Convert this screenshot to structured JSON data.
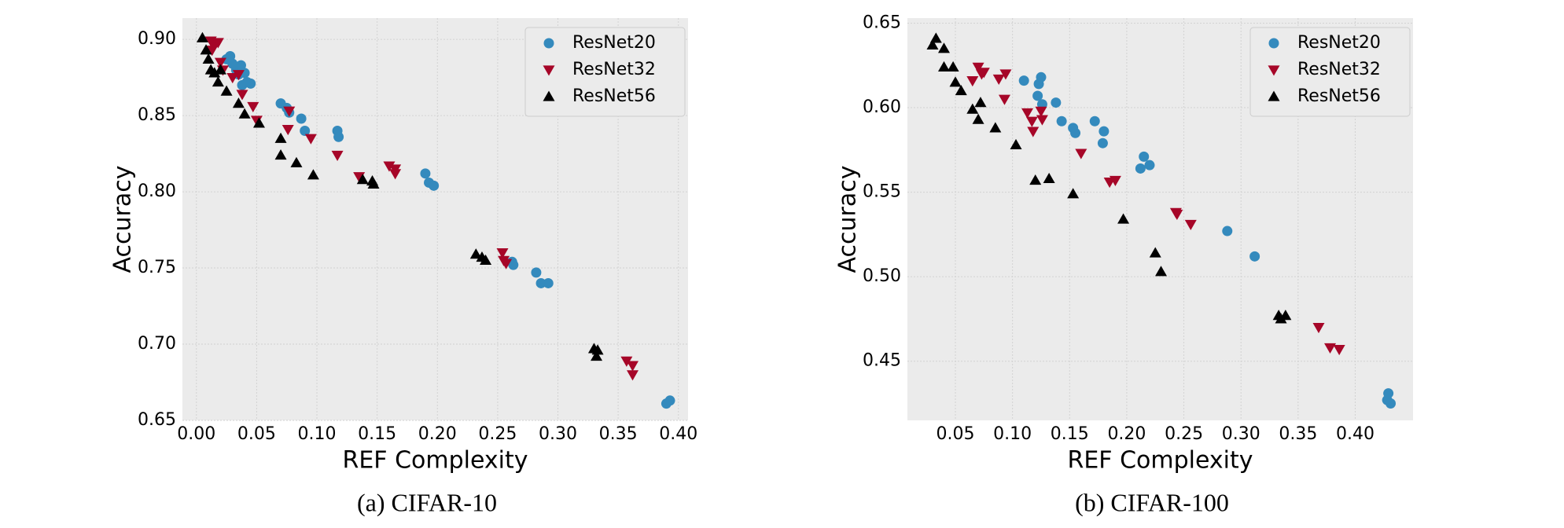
{
  "chart_data": [
    {
      "type": "scatter",
      "caption": "(a) CIFAR-10",
      "xlabel": "REF Complexity",
      "ylabel": "Accuracy",
      "xlim": [
        -0.0116,
        0.408
      ],
      "ylim": [
        0.65,
        0.914
      ],
      "xticks": [
        {
          "value": 0,
          "label": "0.00"
        },
        0.05,
        {
          "value": 0.1,
          "label": "0.10"
        },
        0.15,
        {
          "value": 0.2,
          "label": "0.20"
        },
        0.25,
        {
          "value": 0.3,
          "label": "0.30"
        },
        0.35,
        {
          "value": 0.4,
          "label": "0.40"
        }
      ],
      "yticks": [
        0.65,
        {
          "value": 0.7,
          "label": "0.70"
        },
        0.75,
        {
          "value": 0.8,
          "label": "0.80"
        },
        0.85,
        {
          "value": 0.9,
          "label": "0.90"
        }
      ],
      "grid": true,
      "legend": "upper right",
      "series": [
        {
          "name": "ResNet20",
          "color": "#348abd",
          "marker": "circle",
          "x": [
            0.025,
            0.028,
            0.03,
            0.033,
            0.035,
            0.037,
            0.04,
            0.038,
            0.042,
            0.045,
            0.07,
            0.075,
            0.077,
            0.087,
            0.09,
            0.117,
            0.118,
            0.19,
            0.193,
            0.197,
            0.262,
            0.263,
            0.282,
            0.286,
            0.292,
            0.39,
            0.393
          ],
          "values": [
            0.887,
            0.889,
            0.884,
            0.88,
            0.877,
            0.883,
            0.878,
            0.87,
            0.872,
            0.871,
            0.858,
            0.855,
            0.852,
            0.848,
            0.84,
            0.84,
            0.836,
            0.812,
            0.806,
            0.804,
            0.754,
            0.752,
            0.747,
            0.74,
            0.74,
            0.661,
            0.663
          ]
        },
        {
          "name": "ResNet32",
          "color": "#a60628",
          "marker": "triangle-down",
          "x": [
            0.012,
            0.015,
            0.013,
            0.018,
            0.02,
            0.022,
            0.03,
            0.035,
            0.038,
            0.047,
            0.05,
            0.077,
            0.076,
            0.095,
            0.117,
            0.135,
            0.16,
            0.165,
            0.165,
            0.254,
            0.255,
            0.257,
            0.357,
            0.362,
            0.362
          ],
          "values": [
            0.899,
            0.896,
            0.893,
            0.898,
            0.885,
            0.88,
            0.875,
            0.877,
            0.864,
            0.856,
            0.847,
            0.853,
            0.841,
            0.835,
            0.824,
            0.81,
            0.817,
            0.815,
            0.812,
            0.76,
            0.755,
            0.753,
            0.689,
            0.686,
            0.68
          ]
        },
        {
          "name": "ResNet56",
          "color": "#000000",
          "marker": "triangle-up",
          "x": [
            0.005,
            0.008,
            0.01,
            0.012,
            0.015,
            0.018,
            0.02,
            0.025,
            0.035,
            0.04,
            0.052,
            0.07,
            0.07,
            0.083,
            0.097,
            0.138,
            0.146,
            0.147,
            0.232,
            0.237,
            0.24,
            0.33,
            0.332,
            0.333
          ],
          "values": [
            0.901,
            0.893,
            0.887,
            0.88,
            0.878,
            0.872,
            0.88,
            0.866,
            0.858,
            0.851,
            0.845,
            0.835,
            0.824,
            0.819,
            0.811,
            0.808,
            0.807,
            0.805,
            0.759,
            0.757,
            0.755,
            0.697,
            0.692,
            0.696
          ]
        }
      ]
    },
    {
      "type": "scatter",
      "caption": "(b) CIFAR-100",
      "xlabel": "REF Complexity",
      "ylabel": "Accuracy",
      "xlim": [
        0.008,
        0.4506
      ],
      "ylim": [
        0.415,
        0.653
      ],
      "xticks": [
        0.05,
        {
          "value": 0.1,
          "label": "0.10"
        },
        0.15,
        {
          "value": 0.2,
          "label": "0.20"
        },
        0.25,
        {
          "value": 0.3,
          "label": "0.30"
        },
        0.35,
        {
          "value": 0.4,
          "label": "0.40"
        }
      ],
      "yticks": [
        0.45,
        {
          "value": 0.5,
          "label": "0.50"
        },
        0.55,
        {
          "value": 0.6,
          "label": "0.60"
        },
        0.65
      ],
      "grid": true,
      "legend": "upper right",
      "series": [
        {
          "name": "ResNet20",
          "color": "#348abd",
          "marker": "circle",
          "x": [
            0.11,
            0.122,
            0.123,
            0.125,
            0.126,
            0.138,
            0.143,
            0.153,
            0.155,
            0.172,
            0.179,
            0.18,
            0.212,
            0.215,
            0.22,
            0.288,
            0.312,
            0.428,
            0.429,
            0.431
          ],
          "values": [
            0.616,
            0.607,
            0.614,
            0.618,
            0.602,
            0.603,
            0.592,
            0.588,
            0.585,
            0.592,
            0.579,
            0.586,
            0.564,
            0.571,
            0.566,
            0.527,
            0.512,
            0.427,
            0.431,
            0.425
          ]
        },
        {
          "name": "ResNet32",
          "color": "#a60628",
          "marker": "triangle-down",
          "x": [
            0.065,
            0.07,
            0.073,
            0.075,
            0.088,
            0.094,
            0.093,
            0.113,
            0.117,
            0.118,
            0.125,
            0.126,
            0.16,
            0.185,
            0.19,
            0.243,
            0.244,
            0.256,
            0.368,
            0.378,
            0.386
          ],
          "values": [
            0.616,
            0.624,
            0.62,
            0.621,
            0.617,
            0.62,
            0.605,
            0.597,
            0.592,
            0.586,
            0.598,
            0.593,
            0.573,
            0.556,
            0.557,
            0.538,
            0.537,
            0.531,
            0.47,
            0.458,
            0.457
          ]
        },
        {
          "name": "ResNet56",
          "color": "#000000",
          "marker": "triangle-up",
          "x": [
            0.03,
            0.033,
            0.04,
            0.04,
            0.048,
            0.05,
            0.055,
            0.065,
            0.07,
            0.072,
            0.085,
            0.103,
            0.12,
            0.132,
            0.153,
            0.197,
            0.225,
            0.23,
            0.333,
            0.335,
            0.339
          ],
          "values": [
            0.637,
            0.641,
            0.635,
            0.624,
            0.624,
            0.615,
            0.61,
            0.599,
            0.593,
            0.603,
            0.588,
            0.578,
            0.557,
            0.558,
            0.549,
            0.534,
            0.514,
            0.503,
            0.477,
            0.475,
            0.477
          ]
        }
      ]
    }
  ]
}
